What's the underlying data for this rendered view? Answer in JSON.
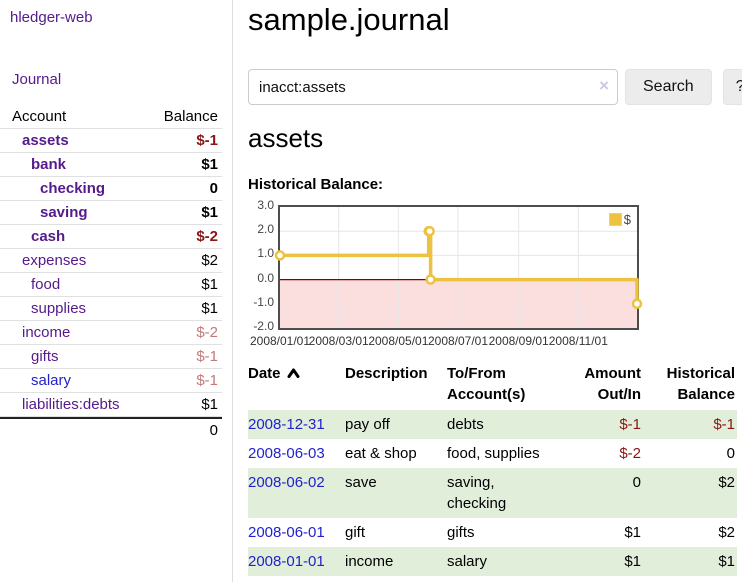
{
  "app": {
    "brand": "hledger-web",
    "nav_journal": "Journal"
  },
  "sidebar": {
    "header": {
      "account": "Account",
      "balance": "Balance"
    },
    "rows": [
      {
        "account": "assets",
        "balance": "$-1"
      },
      {
        "account": "bank",
        "balance": "$1"
      },
      {
        "account": "checking",
        "balance": "0"
      },
      {
        "account": "saving",
        "balance": "$1"
      },
      {
        "account": "cash",
        "balance": "$-2"
      },
      {
        "account": "expenses",
        "balance": "$2"
      },
      {
        "account": "food",
        "balance": "$1"
      },
      {
        "account": "supplies",
        "balance": "$1"
      },
      {
        "account": "income",
        "balance": "$-2"
      },
      {
        "account": "gifts",
        "balance": "$-1"
      },
      {
        "account": "salary",
        "balance": "$-1"
      },
      {
        "account": "liabilities:debts",
        "balance": "$1"
      }
    ],
    "total": "0"
  },
  "header": {
    "title": "sample.journal"
  },
  "search": {
    "value": "inacct:assets",
    "clear_icon": "×",
    "button_label": "Search",
    "help_label": "?"
  },
  "account_page": {
    "heading": "assets",
    "chart_title": "Historical Balance:"
  },
  "chart_data": {
    "type": "line",
    "step": true,
    "title": "Historical Balance:",
    "ylim": [
      -2,
      3
    ],
    "xlim_days": [
      0,
      365
    ],
    "y_ticks": [
      3.0,
      2.0,
      1.0,
      0.0,
      -1.0,
      -2.0
    ],
    "x_ticks": [
      {
        "label": "2008/01/01",
        "day": 0
      },
      {
        "label": "2008/03/01",
        "day": 60
      },
      {
        "label": "2008/05/01",
        "day": 121
      },
      {
        "label": "2008/07/01",
        "day": 182
      },
      {
        "label": "2008/09/01",
        "day": 244
      },
      {
        "label": "2008/11/01",
        "day": 305
      }
    ],
    "series": [
      {
        "name": "$",
        "color": "#EDC240",
        "points": [
          {
            "date": "2008/01/01",
            "day": 0,
            "value": 1
          },
          {
            "date": "2008/06/01",
            "day": 152,
            "value": 2
          },
          {
            "date": "2008/06/02",
            "day": 153,
            "value": 2
          },
          {
            "date": "2008/06/03",
            "day": 154,
            "value": 0
          },
          {
            "date": "2008/12/31",
            "day": 365,
            "value": -1
          }
        ]
      }
    ],
    "colors": {
      "grid": "#e6e6e6",
      "plot_border": "#4d4d4d",
      "zero_line": "#8b0000",
      "below_zero_fill": "#fbdede",
      "marker_fill": "#ffffff"
    },
    "legend": {
      "label": "$",
      "position": "top-right"
    }
  },
  "register": {
    "columns": {
      "date": "Date",
      "description": "Description",
      "accounts": "To/From Account(s)",
      "amount": "Amount Out/In",
      "balance": "Historical Balance"
    },
    "sort": "ascending",
    "rows": [
      {
        "date": "2008-12-31",
        "description": "pay off",
        "accounts": "debts",
        "amount": "$-1",
        "balance": "$-1"
      },
      {
        "date": "2008-06-03",
        "description": "eat & shop",
        "accounts": "food, supplies",
        "amount": "$-2",
        "balance": "0"
      },
      {
        "date": "2008-06-02",
        "description": "save",
        "accounts": "saving, checking",
        "amount": "0",
        "balance": "$2"
      },
      {
        "date": "2008-06-01",
        "description": "gift",
        "accounts": "gifts",
        "amount": "$1",
        "balance": "$2"
      },
      {
        "date": "2008-01-01",
        "description": "income",
        "accounts": "salary",
        "amount": "$1",
        "balance": "$1"
      }
    ]
  }
}
